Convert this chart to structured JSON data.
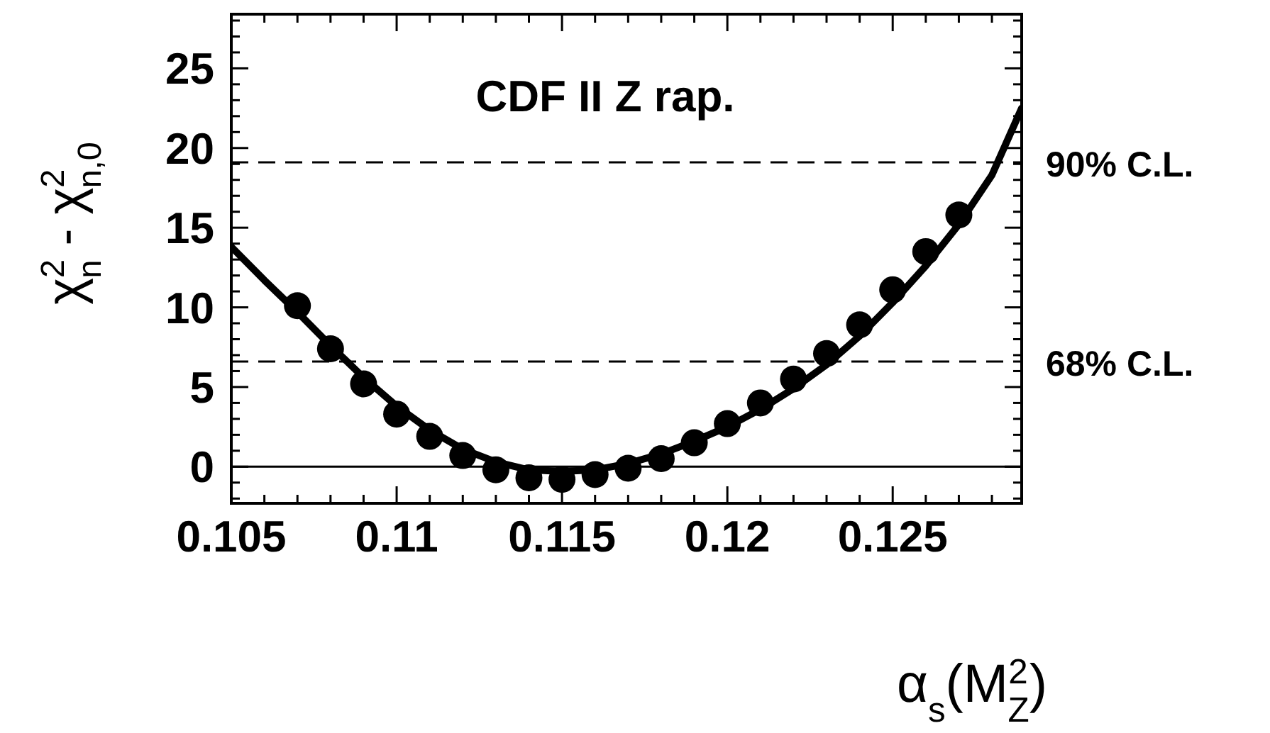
{
  "chart_data": {
    "type": "scatter",
    "title": "CDF II Z rap.",
    "xlabel": "α$_{s}$(M$^{2}$$_{Z}$)",
    "ylabel": "χ$^{2}$$_{n}$ - χ$^{2}$$_{n,0}$",
    "xlim": [
      0.105,
      0.1289
    ],
    "ylim": [
      -2.3,
      28.4
    ],
    "xticks": [
      {
        "value": 0.105,
        "label": "0.105"
      },
      {
        "value": 0.106,
        "label": null
      },
      {
        "value": 0.107,
        "label": null
      },
      {
        "value": 0.108,
        "label": null
      },
      {
        "value": 0.109,
        "label": null
      },
      {
        "value": 0.11,
        "label": "0.11"
      },
      {
        "value": 0.111,
        "label": null
      },
      {
        "value": 0.112,
        "label": null
      },
      {
        "value": 0.113,
        "label": null
      },
      {
        "value": 0.114,
        "label": null
      },
      {
        "value": 0.115,
        "label": "0.115"
      },
      {
        "value": 0.116,
        "label": null
      },
      {
        "value": 0.117,
        "label": null
      },
      {
        "value": 0.118,
        "label": null
      },
      {
        "value": 0.119,
        "label": null
      },
      {
        "value": 0.12,
        "label": "0.12"
      },
      {
        "value": 0.121,
        "label": null
      },
      {
        "value": 0.122,
        "label": null
      },
      {
        "value": 0.123,
        "label": null
      },
      {
        "value": 0.124,
        "label": null
      },
      {
        "value": 0.125,
        "label": "0.125"
      },
      {
        "value": 0.126,
        "label": null
      },
      {
        "value": 0.127,
        "label": null
      },
      {
        "value": 0.128,
        "label": null
      }
    ],
    "yticks": [
      {
        "value": -2,
        "label": null
      },
      {
        "value": -1,
        "label": null
      },
      0,
      {
        "value": 1,
        "label": null
      },
      {
        "value": 2,
        "label": null
      },
      {
        "value": 3,
        "label": null
      },
      {
        "value": 4,
        "label": null
      },
      5,
      {
        "value": 6,
        "label": null
      },
      {
        "value": 7,
        "label": null
      },
      {
        "value": 8,
        "label": null
      },
      {
        "value": 9,
        "label": null
      },
      10,
      {
        "value": 11,
        "label": null
      },
      {
        "value": 12,
        "label": null
      },
      {
        "value": 13,
        "label": null
      },
      {
        "value": 14,
        "label": null
      },
      15,
      {
        "value": 16,
        "label": null
      },
      {
        "value": 17,
        "label": null
      },
      {
        "value": 18,
        "label": null
      },
      {
        "value": 19,
        "label": null
      },
      20,
      {
        "value": 21,
        "label": null
      },
      {
        "value": 22,
        "label": null
      },
      {
        "value": 23,
        "label": null
      },
      {
        "value": 24,
        "label": null
      },
      25,
      {
        "value": 26,
        "label": null
      },
      {
        "value": 27,
        "label": null
      },
      {
        "value": 28,
        "label": null
      }
    ],
    "grid": false,
    "ref_lines": [
      {
        "axis": "y",
        "value": 19.1,
        "label": "90% C.L.",
        "line_style": "dashed",
        "color": "#000000"
      },
      {
        "axis": "y",
        "value": 6.6,
        "label": "68% C.L.",
        "line_style": "dashed",
        "color": "#000000"
      },
      {
        "axis": "y",
        "value": 0,
        "label": null,
        "line_style": "solid",
        "color": "#000000"
      }
    ],
    "series": [
      {
        "type": "line",
        "color": "#000000",
        "marker": "none",
        "line_style": "solid",
        "x": [
          0.105,
          0.106,
          0.107,
          0.108,
          0.109,
          0.11,
          0.111,
          0.112,
          0.113,
          0.114,
          0.115,
          0.116,
          0.117,
          0.118,
          0.119,
          0.12,
          0.121,
          0.122,
          0.123,
          0.124,
          0.125,
          0.126,
          0.127,
          0.128,
          0.1289
        ],
        "values": [
          13.8,
          11.7,
          9.7,
          7.6,
          5.6,
          3.8,
          2.3,
          1.1,
          0.3,
          -0.2,
          -0.3,
          -0.2,
          0.2,
          0.8,
          1.6,
          2.5,
          3.6,
          4.9,
          6.4,
          8.2,
          10.3,
          12.6,
          15.2,
          18.3,
          22.5
        ]
      },
      {
        "color": "#000000",
        "marker": "circle",
        "x": [
          0.107,
          0.108,
          0.109,
          0.11,
          0.111,
          0.112,
          0.113,
          0.114,
          0.115,
          0.116,
          0.117,
          0.118,
          0.119,
          0.12,
          0.121,
          0.122,
          0.123,
          0.124,
          0.125,
          0.126,
          0.127
        ],
        "values": [
          10.1,
          7.4,
          5.2,
          3.3,
          1.9,
          0.7,
          -0.2,
          -0.7,
          -0.8,
          -0.5,
          -0.1,
          0.5,
          1.5,
          2.7,
          4.0,
          5.5,
          7.1,
          8.9,
          11.1,
          13.5,
          15.8
        ]
      }
    ]
  }
}
